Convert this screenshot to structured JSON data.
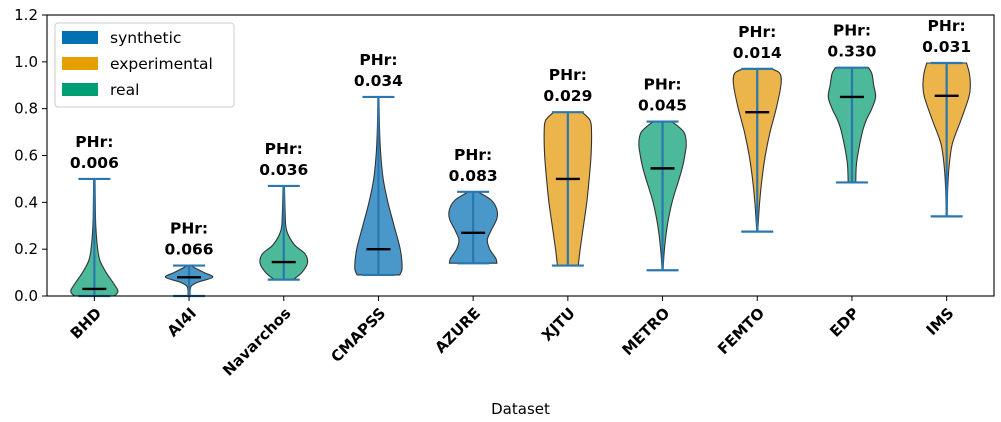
{
  "chart_data": {
    "type": "violin",
    "xlabel": "Dataset",
    "ylabel": "",
    "ylim": [
      0,
      1.2
    ],
    "yticks": [
      0.0,
      0.2,
      0.4,
      0.6,
      0.8,
      1.0,
      1.2
    ],
    "ytick_labels": [
      "0.0",
      "0.2",
      "0.4",
      "0.6",
      "0.8",
      "1.0",
      "1.2"
    ],
    "grid": false,
    "legend": {
      "position": "top-left",
      "entries": [
        {
          "label": "synthetic",
          "color": "#0072b2"
        },
        {
          "label": "experimental",
          "color": "#e69f00"
        },
        {
          "label": "real",
          "color": "#009e73"
        }
      ]
    },
    "categories": [
      "BHD",
      "AI4I",
      "Navarchos",
      "CMAPSS",
      "AZURE",
      "XJTU",
      "METRO",
      "FEMTO",
      "EDP",
      "IMS"
    ],
    "violins": [
      {
        "name": "BHD",
        "type": "real",
        "min": 0.0,
        "max": 0.5,
        "median": 0.03,
        "annotation": [
          "PHr:",
          "0.006"
        ],
        "profile": [
          [
            0.0,
            0.42
          ],
          [
            0.02,
            0.5
          ],
          [
            0.05,
            0.42
          ],
          [
            0.1,
            0.25
          ],
          [
            0.15,
            0.12
          ],
          [
            0.2,
            0.07
          ],
          [
            0.3,
            0.03
          ],
          [
            0.4,
            0.02
          ],
          [
            0.5,
            0.015
          ]
        ]
      },
      {
        "name": "AI4I",
        "type": "synthetic",
        "min": 0.0,
        "max": 0.13,
        "median": 0.08,
        "annotation": [
          "PHr:",
          "0.066"
        ],
        "profile": [
          [
            0.0,
            0.02
          ],
          [
            0.04,
            0.04
          ],
          [
            0.06,
            0.2
          ],
          [
            0.08,
            0.5
          ],
          [
            0.1,
            0.32
          ],
          [
            0.12,
            0.12
          ],
          [
            0.13,
            0.05
          ]
        ]
      },
      {
        "name": "Navarchos",
        "type": "real",
        "min": 0.07,
        "max": 0.47,
        "median": 0.145,
        "annotation": [
          "PHr:",
          "0.036"
        ],
        "profile": [
          [
            0.07,
            0.2
          ],
          [
            0.1,
            0.38
          ],
          [
            0.14,
            0.5
          ],
          [
            0.18,
            0.45
          ],
          [
            0.22,
            0.22
          ],
          [
            0.28,
            0.06
          ],
          [
            0.35,
            0.03
          ],
          [
            0.47,
            0.015
          ]
        ]
      },
      {
        "name": "CMAPSS",
        "type": "synthetic",
        "min": 0.09,
        "max": 0.85,
        "median": 0.2,
        "annotation": [
          "PHr:",
          "0.034"
        ],
        "profile": [
          [
            0.09,
            0.45
          ],
          [
            0.12,
            0.5
          ],
          [
            0.2,
            0.46
          ],
          [
            0.3,
            0.33
          ],
          [
            0.4,
            0.2
          ],
          [
            0.5,
            0.1
          ],
          [
            0.6,
            0.05
          ],
          [
            0.7,
            0.025
          ],
          [
            0.85,
            0.01
          ]
        ]
      },
      {
        "name": "AZURE",
        "type": "synthetic",
        "min": 0.14,
        "max": 0.445,
        "median": 0.27,
        "annotation": [
          "PHr:",
          "0.083"
        ],
        "profile": [
          [
            0.14,
            0.5
          ],
          [
            0.16,
            0.48
          ],
          [
            0.2,
            0.35
          ],
          [
            0.24,
            0.3
          ],
          [
            0.28,
            0.38
          ],
          [
            0.33,
            0.5
          ],
          [
            0.37,
            0.5
          ],
          [
            0.41,
            0.38
          ],
          [
            0.445,
            0.1
          ]
        ]
      },
      {
        "name": "XJTU",
        "type": "experimental",
        "min": 0.13,
        "max": 0.785,
        "median": 0.5,
        "annotation": [
          "PHr:",
          "0.029"
        ],
        "profile": [
          [
            0.13,
            0.22
          ],
          [
            0.2,
            0.26
          ],
          [
            0.3,
            0.33
          ],
          [
            0.4,
            0.4
          ],
          [
            0.5,
            0.45
          ],
          [
            0.6,
            0.49
          ],
          [
            0.7,
            0.5
          ],
          [
            0.75,
            0.47
          ],
          [
            0.785,
            0.3
          ]
        ]
      },
      {
        "name": "METRO",
        "type": "real",
        "min": 0.11,
        "max": 0.745,
        "median": 0.545,
        "annotation": [
          "PHr:",
          "0.045"
        ],
        "profile": [
          [
            0.11,
            0.01
          ],
          [
            0.2,
            0.04
          ],
          [
            0.3,
            0.1
          ],
          [
            0.4,
            0.2
          ],
          [
            0.5,
            0.35
          ],
          [
            0.55,
            0.42
          ],
          [
            0.6,
            0.47
          ],
          [
            0.65,
            0.5
          ],
          [
            0.7,
            0.45
          ],
          [
            0.745,
            0.2
          ]
        ]
      },
      {
        "name": "FEMTO",
        "type": "experimental",
        "min": 0.275,
        "max": 0.97,
        "median": 0.785,
        "annotation": [
          "PHr:",
          "0.014"
        ],
        "profile": [
          [
            0.275,
            0.01
          ],
          [
            0.4,
            0.05
          ],
          [
            0.5,
            0.1
          ],
          [
            0.6,
            0.17
          ],
          [
            0.7,
            0.27
          ],
          [
            0.8,
            0.4
          ],
          [
            0.9,
            0.5
          ],
          [
            0.95,
            0.48
          ],
          [
            0.97,
            0.3
          ]
        ]
      },
      {
        "name": "EDP",
        "type": "real",
        "min": 0.485,
        "max": 0.975,
        "median": 0.85,
        "annotation": [
          "PHr:",
          "0.330"
        ],
        "profile": [
          [
            0.485,
            0.08
          ],
          [
            0.55,
            0.09
          ],
          [
            0.6,
            0.12
          ],
          [
            0.7,
            0.22
          ],
          [
            0.75,
            0.3
          ],
          [
            0.8,
            0.42
          ],
          [
            0.85,
            0.5
          ],
          [
            0.9,
            0.46
          ],
          [
            0.95,
            0.42
          ],
          [
            0.975,
            0.35
          ]
        ]
      },
      {
        "name": "IMS",
        "type": "experimental",
        "min": 0.34,
        "max": 0.995,
        "median": 0.855,
        "annotation": [
          "PHr:",
          "0.031"
        ],
        "profile": [
          [
            0.34,
            0.01
          ],
          [
            0.45,
            0.02
          ],
          [
            0.55,
            0.05
          ],
          [
            0.65,
            0.12
          ],
          [
            0.75,
            0.3
          ],
          [
            0.85,
            0.47
          ],
          [
            0.9,
            0.5
          ],
          [
            0.95,
            0.48
          ],
          [
            0.995,
            0.42
          ]
        ]
      }
    ]
  },
  "colors": {
    "synthetic": "#4a97c9",
    "experimental": "#ebb54b",
    "real": "#4bb99a",
    "whisker": "#2a77b0",
    "median": "#000000",
    "outline": "#333333"
  }
}
